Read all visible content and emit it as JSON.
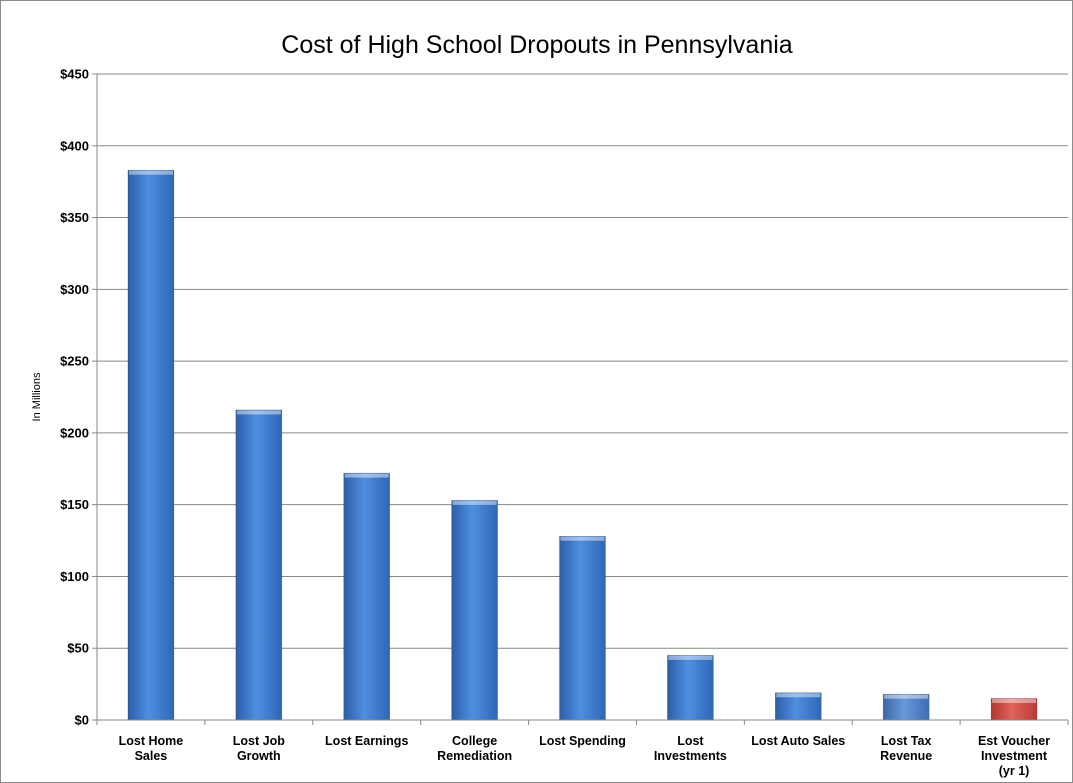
{
  "chart_data": {
    "type": "bar",
    "title": "Cost of High School Dropouts in Pennsylvania",
    "xlabel": "",
    "ylabel": "In Millions",
    "ylim": [
      0,
      450
    ],
    "yticks": [
      0,
      50,
      100,
      150,
      200,
      250,
      300,
      350,
      400,
      450
    ],
    "ytick_labels": [
      "$0",
      "$50",
      "$100",
      "$150",
      "$200",
      "$250",
      "$300",
      "$350",
      "$400",
      "$450"
    ],
    "grid": true,
    "legend": "none",
    "categories": [
      [
        "Lost Home",
        "Sales"
      ],
      [
        "Lost Job",
        "Growth"
      ],
      [
        "Lost Earnings"
      ],
      [
        "College",
        "Remediation"
      ],
      [
        "Lost Spending"
      ],
      [
        "Lost",
        "Investments"
      ],
      [
        "Lost Auto Sales"
      ],
      [
        "Lost Tax",
        "Revenue"
      ],
      [
        "Est Voucher",
        "Investment",
        "(yr 1)"
      ]
    ],
    "values": [
      383,
      216,
      172,
      153,
      128,
      45,
      19,
      18,
      15
    ],
    "bar_colors": [
      "#3b78cf",
      "#3b78cf",
      "#3b78cf",
      "#3b78cf",
      "#3b78cf",
      "#3b78cf",
      "#3b78cf",
      "#4a7fc9",
      "#cf4b45"
    ]
  }
}
